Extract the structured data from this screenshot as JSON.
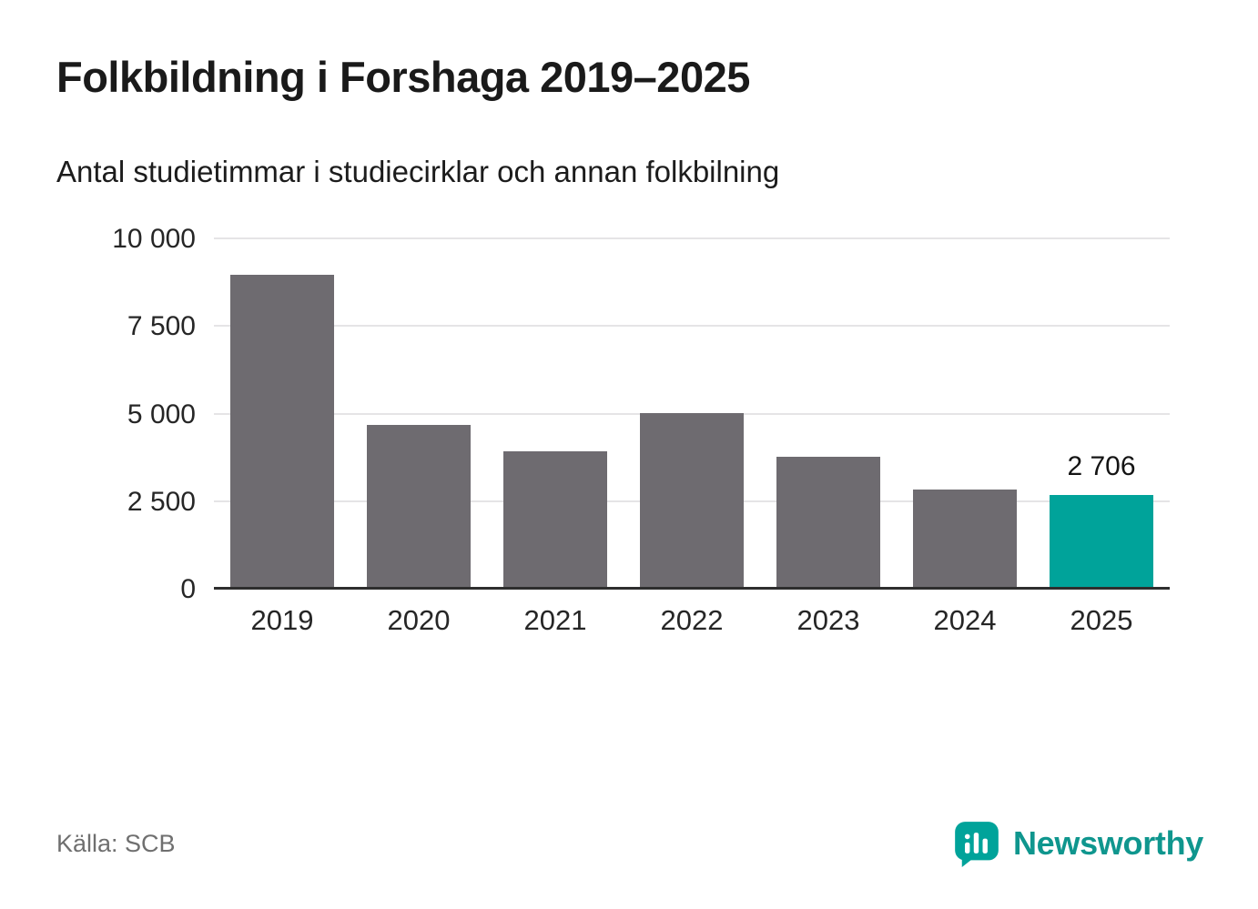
{
  "header": {
    "title": "Folkbildning i Forshaga 2019–2025",
    "subtitle": "Antal studietimmar i studiecirklar och annan folkbilning"
  },
  "chart_data": {
    "type": "bar",
    "title": "Folkbildning i Forshaga 2019–2025",
    "subtitle": "Antal studietimmar i studiecirklar och annan folkbilning",
    "categories": [
      "2019",
      "2020",
      "2021",
      "2022",
      "2023",
      "2024",
      "2025"
    ],
    "values": [
      9000,
      4700,
      3950,
      5050,
      3800,
      2850,
      2706
    ],
    "value_labels": [
      "",
      "",
      "",
      "",
      "",
      "",
      "2 706"
    ],
    "xlabel": "",
    "ylabel": "",
    "ylim": [
      0,
      10000
    ],
    "yticks": [
      0,
      2500,
      5000,
      7500,
      10000
    ],
    "ytick_labels": [
      "0",
      "2 500",
      "5 000",
      "7 500",
      "10 000"
    ],
    "grid": "horizontal",
    "legend": "none",
    "bar_color": "#6e6b70",
    "highlight_color": "#00a39a",
    "highlight_index": 6
  },
  "footer": {
    "source": "Källa: SCB",
    "brand": "Newsworthy",
    "brand_color": "#0f968e",
    "logo_color": "#00a39a"
  }
}
